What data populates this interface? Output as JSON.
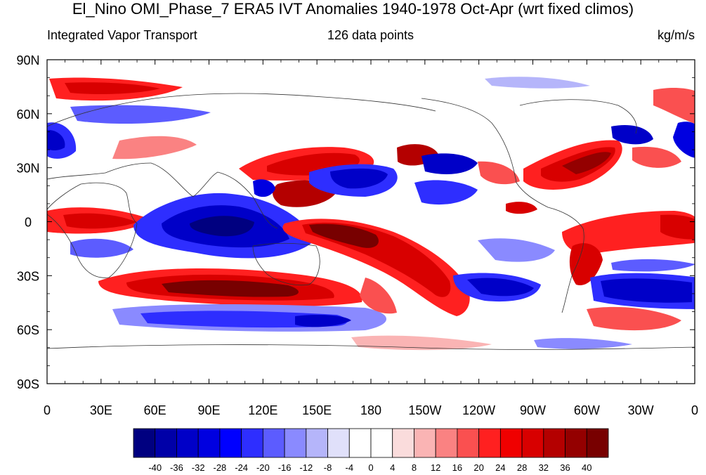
{
  "title": "El_Nino OMI_Phase_7 ERA5 IVT Anomalies 1940-1978 Oct-Apr (wrt fixed climos)",
  "left_string": "Integrated Vapor Transport",
  "center_string": "126 data points",
  "right_string": "kg/m/s",
  "lat_labels": [
    "90N",
    "60N",
    "30N",
    "0",
    "30S",
    "60S",
    "90S"
  ],
  "lat_values": [
    90,
    60,
    30,
    0,
    -30,
    -60,
    -90
  ],
  "lon_labels": [
    "0",
    "30E",
    "60E",
    "90E",
    "120E",
    "150E",
    "180",
    "150W",
    "120W",
    "90W",
    "60W",
    "30W",
    "0"
  ],
  "lon_values": [
    0,
    30,
    60,
    90,
    120,
    150,
    180,
    210,
    240,
    270,
    300,
    330,
    360
  ],
  "colorbar": {
    "labels": [
      "-40",
      "-36",
      "-32",
      "-28",
      "-24",
      "-20",
      "-16",
      "-12",
      "-8",
      "-4",
      "0",
      "4",
      "8",
      "12",
      "16",
      "20",
      "24",
      "28",
      "32",
      "36",
      "40"
    ],
    "colors": [
      "#000080",
      "#0000a8",
      "#0000c8",
      "#0000e0",
      "#0000ff",
      "#2e2eff",
      "#5c5cff",
      "#8a8aff",
      "#b5b5fa",
      "#e0e0fa",
      "#ffffff",
      "#ffffff",
      "#fadcdc",
      "#fab4b4",
      "#fa8282",
      "#fa5050",
      "#ff2020",
      "#f00000",
      "#d80000",
      "#b40000",
      "#940000",
      "#780000"
    ]
  },
  "map_data": {
    "projection": "cylindrical-equidistant",
    "lon_range": [
      0,
      360
    ],
    "lat_range": [
      -90,
      90
    ],
    "variable": "IVT anomaly",
    "units": "kg/m/s",
    "anomaly_features": [
      {
        "name": "north-pacific-positive-band",
        "sign": "positive",
        "lon": [
          120,
          200
        ],
        "lat": [
          15,
          45
        ],
        "peak": 40
      },
      {
        "name": "tropical-western-pacific-negative",
        "sign": "negative",
        "lon": [
          140,
          205
        ],
        "lat": [
          18,
          35
        ],
        "peak": -40
      },
      {
        "name": "south-pacific-convergence-positive",
        "sign": "positive",
        "lon": [
          150,
          235
        ],
        "lat": [
          -40,
          -5
        ],
        "peak": 40
      },
      {
        "name": "indian-ocean-negative",
        "sign": "negative",
        "lon": [
          45,
          130
        ],
        "lat": [
          -25,
          5
        ],
        "peak": -40
      },
      {
        "name": "southern-indian-positive-band",
        "sign": "positive",
        "lon": [
          45,
          160
        ],
        "lat": [
          -50,
          -30
        ],
        "peak": 40
      },
      {
        "name": "southern-ocean-negative-band",
        "sign": "negative",
        "lon": [
          70,
          190
        ],
        "lat": [
          -62,
          -52
        ],
        "peak": -28
      },
      {
        "name": "east-pacific-negative",
        "sign": "negative",
        "lon": [
          220,
          265
        ],
        "lat": [
          -45,
          -30
        ],
        "peak": -36
      },
      {
        "name": "gulf-of-mexico-positive",
        "sign": "positive",
        "lon": [
          265,
          315
        ],
        "lat": [
          20,
          45
        ],
        "peak": 40
      },
      {
        "name": "south-atlantic-negative",
        "sign": "negative",
        "lon": [
          305,
          360
        ],
        "lat": [
          -45,
          -30
        ],
        "peak": -40
      },
      {
        "name": "south-atlantic-positive-band",
        "sign": "positive",
        "lon": [
          300,
          360
        ],
        "lat": [
          -25,
          10
        ],
        "peak": 36
      },
      {
        "name": "europe-negative",
        "sign": "negative",
        "lon": [
          0,
          20
        ],
        "lat": [
          40,
          60
        ],
        "peak": -36
      },
      {
        "name": "arctic-positive",
        "sign": "positive",
        "lon": [
          0,
          80
        ],
        "lat": [
          65,
          75
        ],
        "peak": 32
      }
    ]
  }
}
